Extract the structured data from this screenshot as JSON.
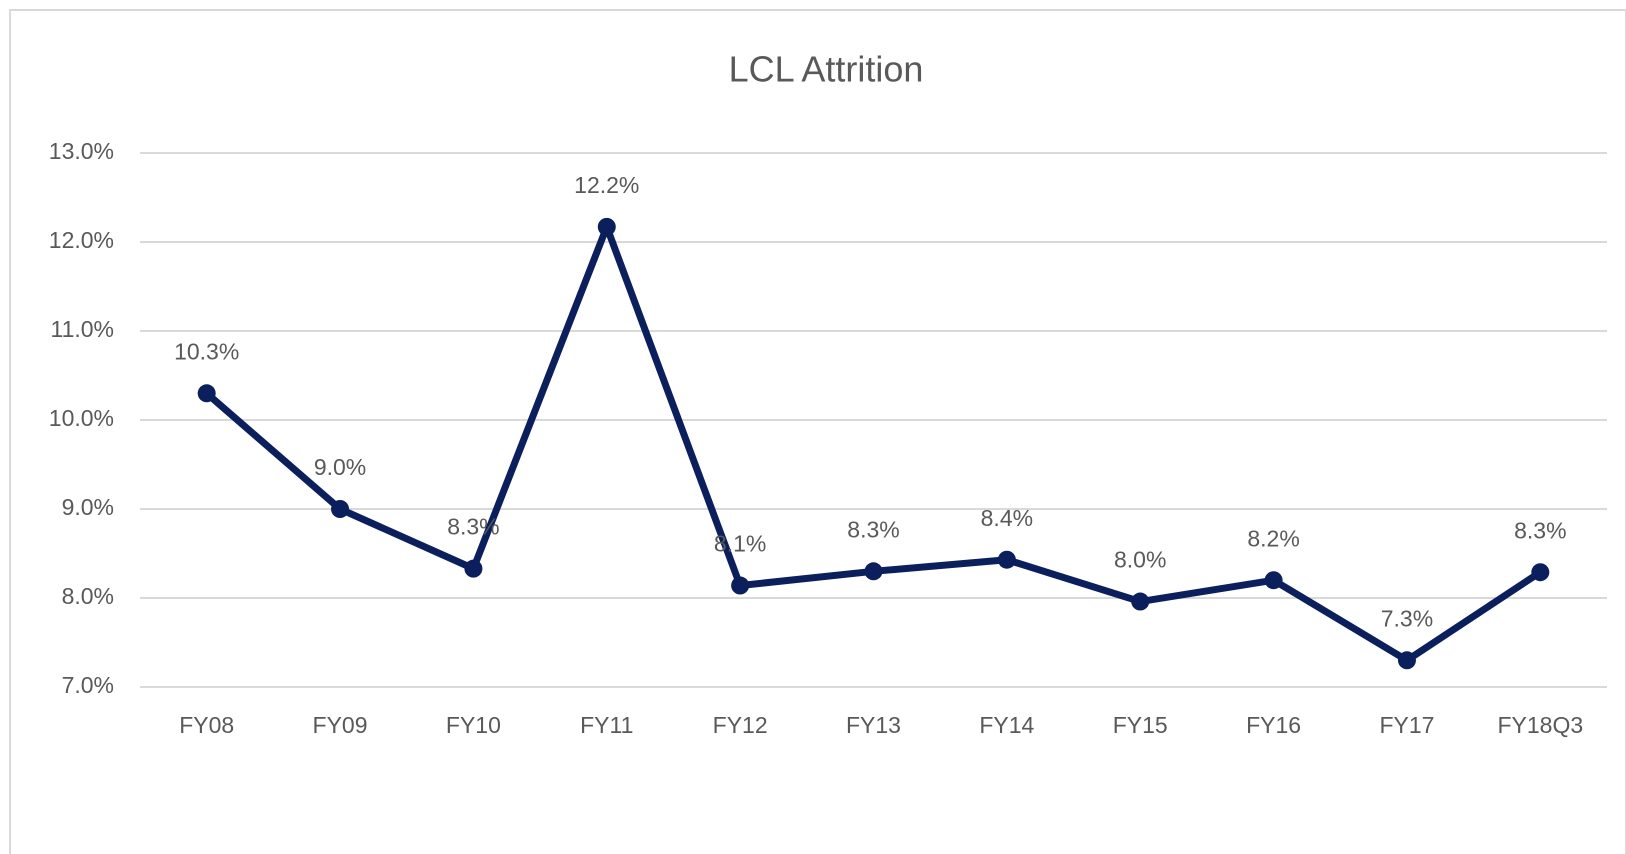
{
  "chart_data": {
    "type": "line",
    "title": "LCL Attrition",
    "categories": [
      "FY08",
      "FY09",
      "FY10",
      "FY11",
      "FY12",
      "FY13",
      "FY14",
      "FY15",
      "FY16",
      "FY17",
      "FY18Q3"
    ],
    "series": [
      {
        "name": "LCL Attrition",
        "color": "#0b1f5c",
        "values": [
          10.3,
          9.0,
          8.33,
          12.17,
          8.14,
          8.3,
          8.43,
          7.96,
          8.2,
          7.3,
          8.29
        ],
        "value_labels": [
          "10.3%",
          "9.0%",
          "8.3%",
          "12.2%",
          "8.1%",
          "8.3%",
          "8.4%",
          "8.0%",
          "8.2%",
          "7.3%",
          "8.3%"
        ]
      }
    ],
    "ylim": [
      7,
      13
    ],
    "yticks": [
      {
        "value": 7,
        "label": "7.0%"
      },
      {
        "value": 8,
        "label": "8.0%"
      },
      {
        "value": 9,
        "label": "9.0%"
      },
      {
        "value": 10,
        "label": "10.0%"
      },
      {
        "value": 11,
        "label": "11.0%"
      },
      {
        "value": 12,
        "label": "12.0%"
      },
      {
        "value": 13,
        "label": "13.0%"
      }
    ],
    "grid": true
  }
}
